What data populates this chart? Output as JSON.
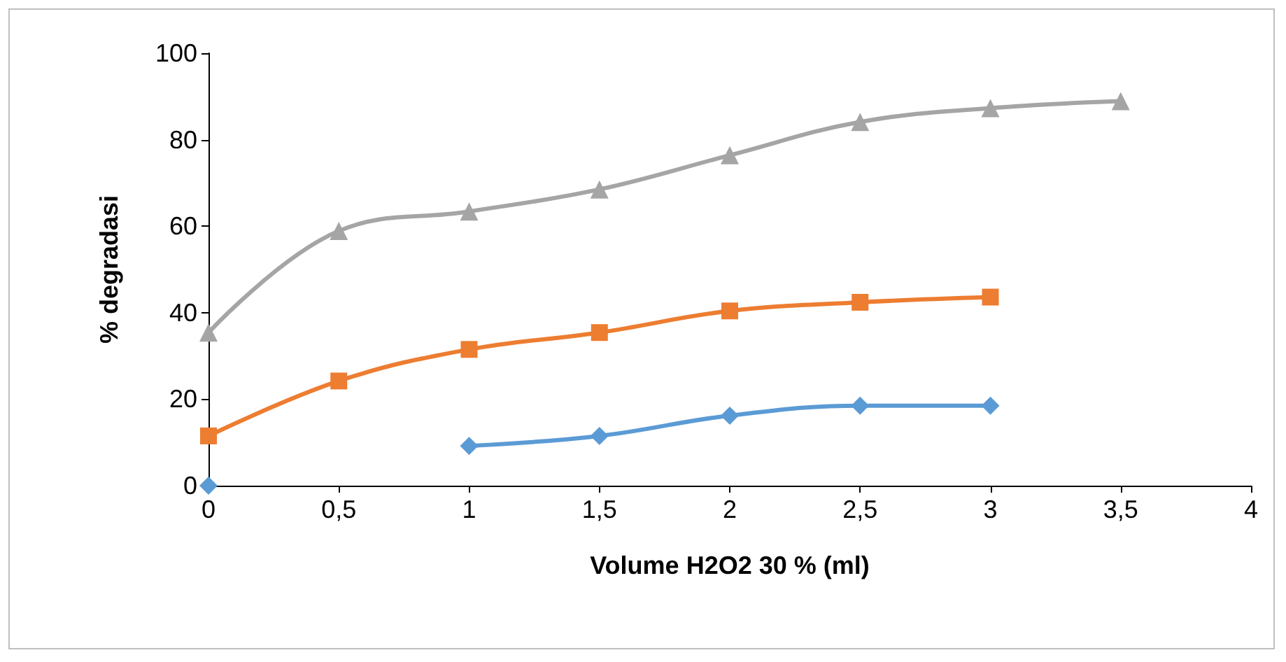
{
  "chart_data": {
    "type": "line",
    "xlabel": "Volume H2O2 30 % (ml)",
    "ylabel": "% degradasi",
    "x": [
      0,
      0.5,
      1,
      1.5,
      2,
      2.5,
      3,
      3.5
    ],
    "series": [
      {
        "color": "#5b9bd5",
        "marker": "diamond",
        "values": [
          0,
          null,
          9.2,
          11.5,
          16.2,
          18.5,
          18.5,
          null
        ]
      },
      {
        "color": "#ed7d31",
        "marker": "square",
        "values": [
          11.5,
          24.2,
          31.5,
          35.4,
          40.4,
          42.4,
          43.6,
          null
        ]
      },
      {
        "color": "#a5a5a5",
        "marker": "triangle",
        "values": [
          35.4,
          58.9,
          63.4,
          68.5,
          76.4,
          84.1,
          87.3,
          88.9
        ]
      }
    ],
    "xlim": [
      0,
      4
    ],
    "xticks": [
      0,
      {
        "value": 0.5,
        "label": "0,5"
      },
      1,
      {
        "value": 1.5,
        "label": "1,5"
      },
      2,
      {
        "value": 2.5,
        "label": "2,5"
      },
      3,
      {
        "value": 3.5,
        "label": "3,5"
      },
      4
    ],
    "ylim": [
      0,
      100
    ],
    "yticks": [
      0,
      20,
      40,
      60,
      80,
      100
    ],
    "grid": false
  }
}
